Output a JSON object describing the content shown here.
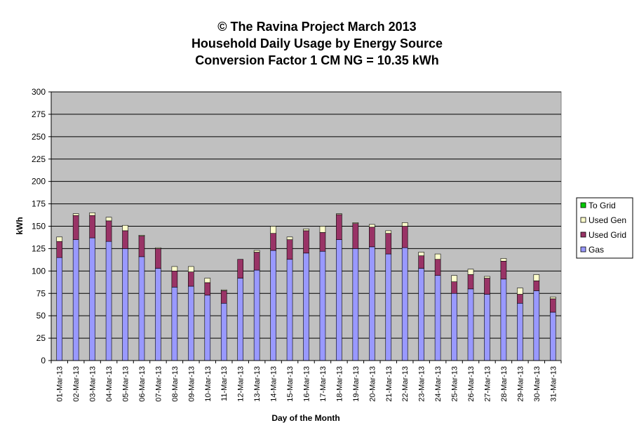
{
  "chart_data": {
    "type": "bar",
    "stacked": true,
    "title_lines": [
      "© The Ravina Project March 2013",
      "Household Daily Usage by Energy Source",
      "Conversion Factor 1 CM NG = 10.35 kWh"
    ],
    "xlabel": "Day of the Month",
    "ylabel": "kWh",
    "ylim": [
      0,
      300
    ],
    "yticks": [
      0,
      25,
      50,
      75,
      100,
      125,
      150,
      175,
      200,
      225,
      250,
      275,
      300
    ],
    "grid": true,
    "legend_position": "right",
    "categories": [
      "01-Mar-13",
      "02-Mar-13",
      "03-Mar-13",
      "04-Mar-13",
      "05-Mar-13",
      "06-Mar-13",
      "07-Mar-13",
      "08-Mar-13",
      "09-Mar-13",
      "10-Mar-13",
      "11-Mar-13",
      "12-Mar-13",
      "13-Mar-13",
      "14-Mar-13",
      "15-Mar-13",
      "16-Mar-13",
      "17-Mar-13",
      "18-Mar-13",
      "19-Mar-13",
      "20-Mar-13",
      "21-Mar-13",
      "22-Mar-13",
      "23-Mar-13",
      "24-Mar-13",
      "25-Mar-13",
      "26-Mar-13",
      "27-Mar-13",
      "28-Mar-13",
      "29-Mar-13",
      "30-Mar-13",
      "31-Mar-13"
    ],
    "series": [
      {
        "name": "Gas",
        "color": "#9999ff",
        "values": [
          115,
          135,
          137,
          133,
          125,
          116,
          103,
          82,
          83,
          73,
          64,
          92,
          101,
          123,
          113,
          120,
          122,
          135,
          125,
          127,
          119,
          126,
          103,
          95,
          75,
          80,
          74,
          91,
          64,
          78,
          54
        ]
      },
      {
        "name": "Used Grid",
        "color": "#993366",
        "values": [
          18,
          27,
          25,
          23,
          20,
          23,
          22,
          18,
          16,
          14,
          14,
          21,
          20,
          19,
          22,
          25,
          21,
          28,
          28,
          22,
          23,
          24,
          14,
          18,
          13,
          16,
          18,
          20,
          10,
          11,
          15
        ]
      },
      {
        "name": "Used Gen",
        "color": "#ffffcc",
        "values": [
          5,
          2,
          3,
          4,
          6,
          1,
          1,
          5,
          6,
          5,
          1,
          0,
          2,
          8,
          3,
          2,
          7,
          1,
          1,
          3,
          3,
          4,
          4,
          6,
          7,
          6,
          2,
          3,
          7,
          7,
          2
        ]
      },
      {
        "name": "To Grid",
        "color": "#00cc00",
        "values": [
          0,
          0,
          0,
          0,
          0,
          0,
          0,
          0,
          0,
          0,
          0,
          0,
          0,
          0,
          0,
          0,
          0,
          0,
          0,
          0,
          0,
          0,
          0,
          0,
          0,
          0,
          0,
          0,
          0,
          0,
          0
        ]
      }
    ],
    "legend_order": [
      "To Grid",
      "Used Gen",
      "Used Grid",
      "Gas"
    ],
    "colors": {
      "plot_background": "#c0c0c0",
      "gridline": "#000000",
      "bar_outline": "#000000"
    }
  }
}
